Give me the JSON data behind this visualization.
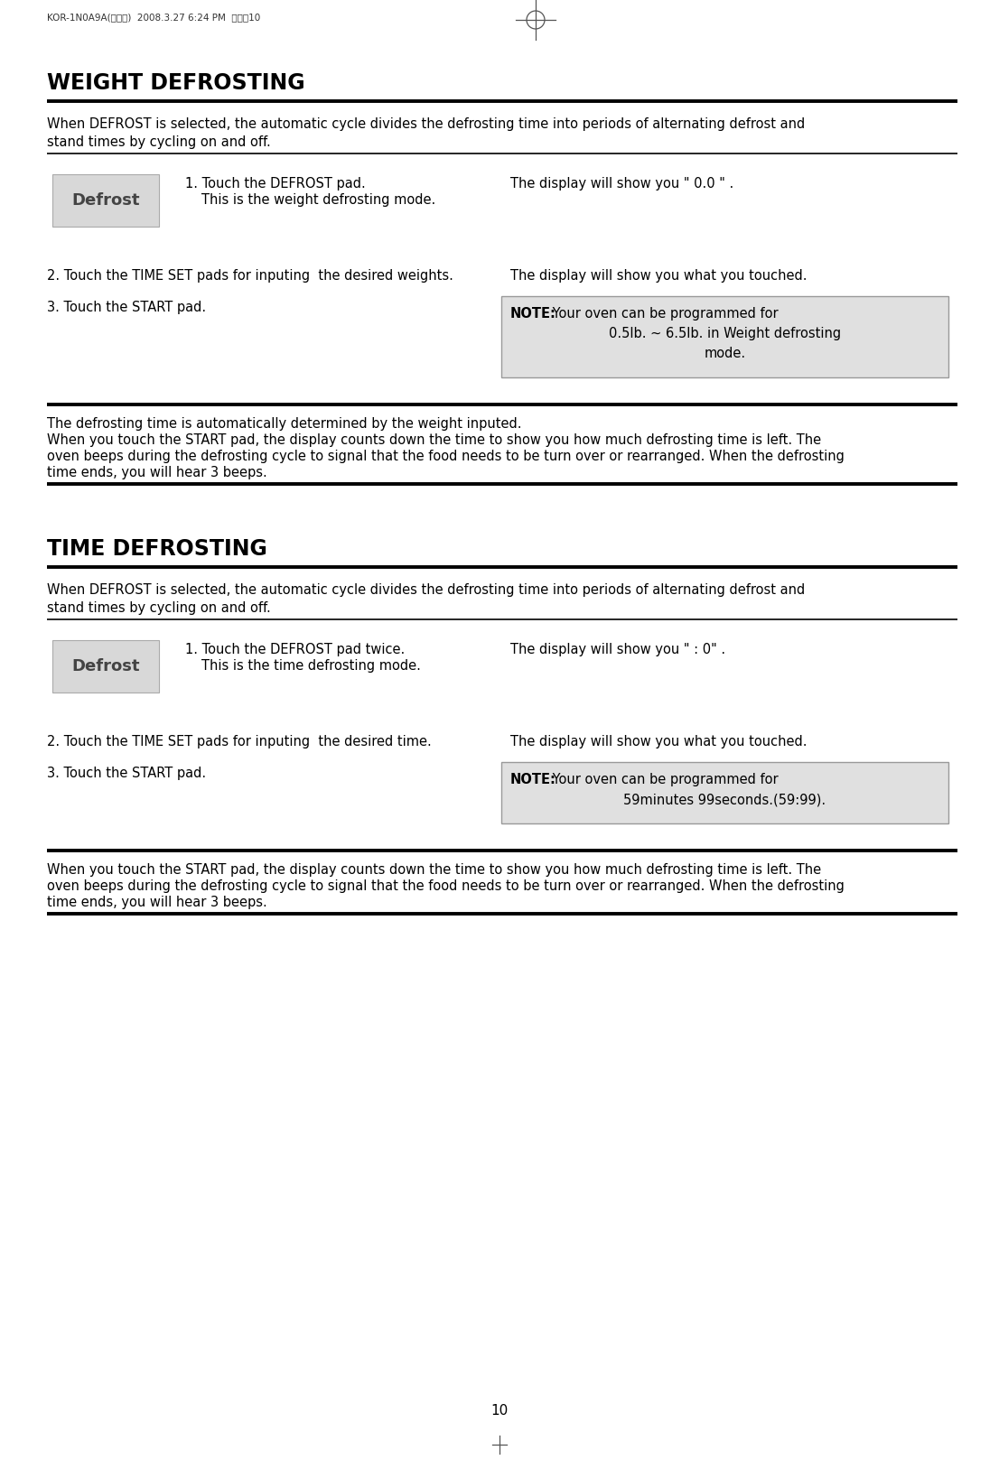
{
  "page_bg": "#ffffff",
  "header_text": "KOR-1N0A9A(영기본)  2008.3.27 6:24 PM  페이직10",
  "page_number": "10",
  "weight_title": "WEIGHT DEFROSTING",
  "weight_intro1": "When DEFROST is selected, the automatic cycle divides the defrosting time into periods of alternating defrost and",
  "weight_intro2": "stand times by cycling on and off.",
  "weight_step1a": "1. Touch the DEFROST pad.",
  "weight_step1b": "    This is the weight defrosting mode.",
  "weight_step1_right": "The display will show you \" 0.0 \" .",
  "weight_defrost_label": "Defrost",
  "weight_step2_left": "2. Touch the TIME SET pads for inputing  the desired weights.",
  "weight_step2_right": "The display will show you what you touched.",
  "weight_step3_left": "3. Touch the START pad.",
  "weight_note_bold": "NOTE:",
  "weight_note_rest": " Your oven can be programmed for",
  "weight_note_line2": "0.5lb. ~ 6.5lb. in Weight defrosting",
  "weight_note_line3": "mode.",
  "weight_footer1": "The defrosting time is automatically determined by the weight inputed.",
  "weight_footer2": "When you touch the START pad, the display counts down the time to show you how much defrosting time is left. The",
  "weight_footer3": "oven beeps during the defrosting cycle to signal that the food needs to be turn over or rearranged. When the defrosting",
  "weight_footer4": "time ends, you will hear 3 beeps.",
  "time_title": "TIME DEFROSTING",
  "time_intro1": "When DEFROST is selected, the automatic cycle divides the defrosting time into periods of alternating defrost and",
  "time_intro2": "stand times by cycling on and off.",
  "time_step1a": "1. Touch the DEFROST pad twice.",
  "time_step1b": "    This is the time defrosting mode.",
  "time_step1_right": "The display will show you \" : 0\" .",
  "time_defrost_label": "Defrost",
  "time_step2_left": "2. Touch the TIME SET pads for inputing  the desired time.",
  "time_step2_right": "The display will show you what you touched.",
  "time_step3_left": "3. Touch the START pad.",
  "time_note_bold": "NOTE:",
  "time_note_rest": " Your oven can be programmed for",
  "time_note_line2": "59minutes 99seconds.(59:99).",
  "time_footer1": "When you touch the START pad, the display counts down the time to show you how much defrosting time is left. The",
  "time_footer2": "oven beeps during the defrosting cycle to signal that the food needs to be turn over or rearranged. When the defrosting",
  "time_footer3": "time ends, you will hear 3 beeps.",
  "defrost_box_color": "#d8d8d8",
  "note_box_color": "#e0e0e0",
  "note_box_edge": "#999999",
  "line_color": "#000000",
  "title_fontsize": 17,
  "body_fontsize": 10.5,
  "note_fontsize": 10.5,
  "defrost_fontsize": 13,
  "header_fontsize": 7.5
}
